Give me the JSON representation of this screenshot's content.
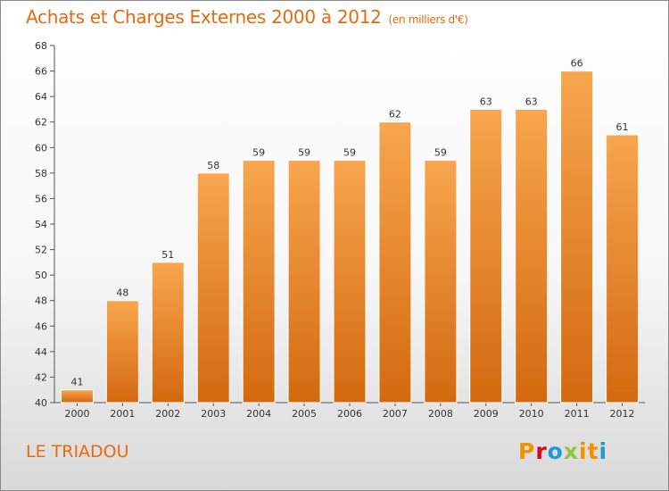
{
  "chart_data": {
    "type": "bar",
    "title": "Achats et Charges Externes 2000 à 2012",
    "subtitle": "(en milliers d'€)",
    "categories": [
      "2000",
      "2001",
      "2002",
      "2003",
      "2004",
      "2005",
      "2006",
      "2007",
      "2008",
      "2009",
      "2010",
      "2011",
      "2012"
    ],
    "values": [
      41,
      48,
      51,
      58,
      59,
      59,
      59,
      62,
      59,
      63,
      63,
      66,
      61
    ],
    "ylim": [
      40,
      68
    ],
    "yticks": [
      40,
      42,
      44,
      46,
      48,
      50,
      52,
      54,
      56,
      58,
      60,
      62,
      64,
      66,
      68
    ],
    "grid": false,
    "bar_color": "#f0913a",
    "label": "LE TRIADOU"
  },
  "logo": {
    "text": "Proxiti",
    "colors": [
      "#f39200",
      "#e2001a",
      "#1f9ad6",
      "#8dc63f",
      "#f39200",
      "#f39200",
      "#1f9ad6"
    ]
  }
}
